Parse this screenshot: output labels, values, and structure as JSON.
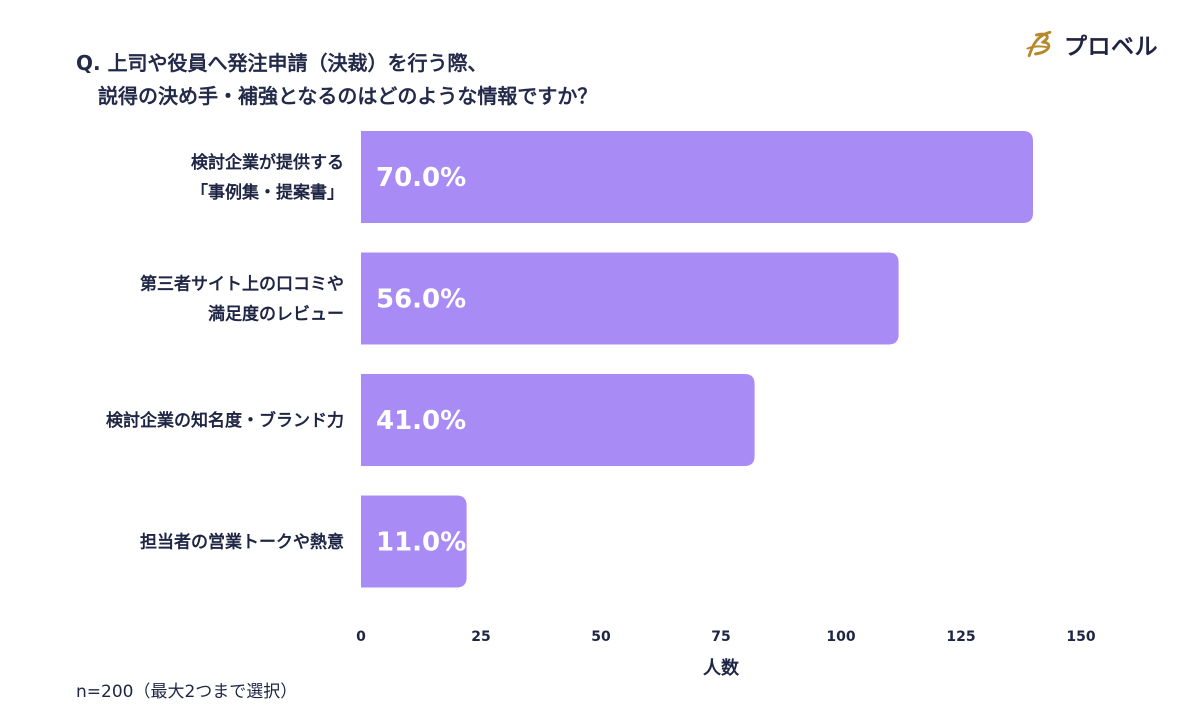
{
  "question": {
    "line1": "Q. 上司や役員へ発注申請（決裁）を行う際、",
    "line2": "説得の決め手・補強となるのはどのような情報ですか？"
  },
  "logo": {
    "text": "プロベル",
    "mark_color": "#b58a2c"
  },
  "footnote": "n=200（最大2つまで選択）",
  "colors": {
    "bar": "#a98bf6",
    "text": "#1f2544",
    "value_text": "#ffffff"
  },
  "chart_data": {
    "type": "bar",
    "orientation": "horizontal",
    "categories": [
      [
        "検討企業が提供する",
        "「事例集・提案書」"
      ],
      [
        "第三者サイト上の口コミや",
        "満足度のレビュー"
      ],
      [
        "検討企業の知名度・ブランド力"
      ],
      [
        "担当者の営業トークや熱意"
      ]
    ],
    "values": [
      140,
      112,
      82,
      22
    ],
    "data_labels": [
      "70.0%",
      "56.0%",
      "41.0%",
      "11.0%"
    ],
    "xlabel": "人数",
    "xlim": [
      0,
      150
    ],
    "xticks": [
      0,
      25,
      50,
      75,
      100,
      125,
      150
    ],
    "grid": false,
    "legend": "none"
  }
}
